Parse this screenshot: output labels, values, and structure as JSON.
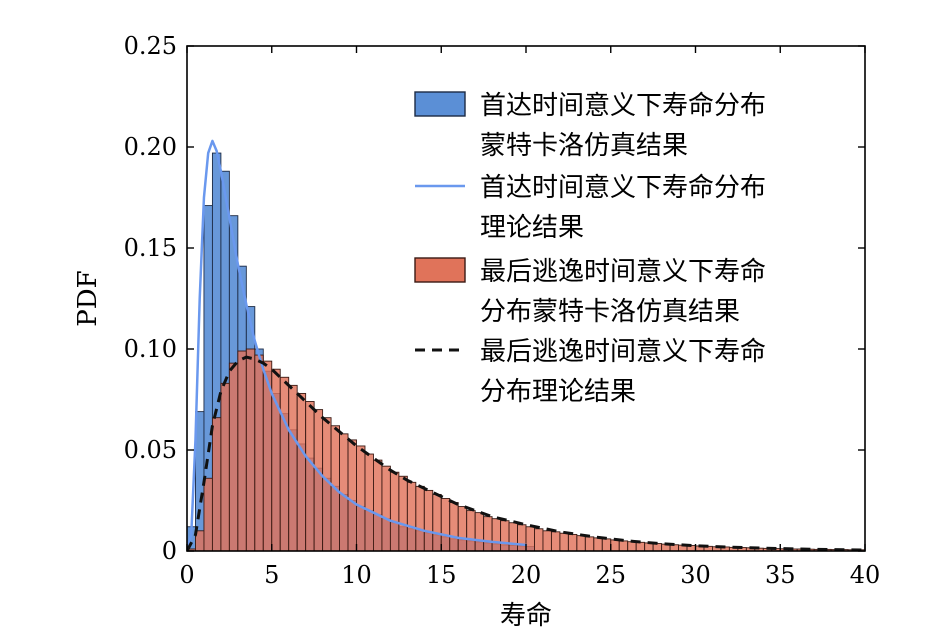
{
  "chart_data": {
    "type": "bar",
    "title": "",
    "xlabel": "寿命",
    "ylabel": "PDF",
    "xlim": [
      0,
      40
    ],
    "ylim": [
      0,
      0.25
    ],
    "grid": false,
    "legend_position": "top-right",
    "x_ticks": [
      0,
      5,
      10,
      15,
      20,
      25,
      30,
      35,
      40
    ],
    "x_tick_labels": [
      "0",
      "5",
      "10",
      "15",
      "20",
      "25",
      "30",
      "35",
      "40"
    ],
    "y_ticks": [
      0,
      0.05,
      0.1,
      0.15,
      0.2,
      0.25
    ],
    "y_tick_labels": [
      "0",
      "0.05",
      "0.10",
      "0.15",
      "0.20",
      "0.25"
    ],
    "series": [
      {
        "name": "首达时间意义下寿命分布蒙特卡洛仿真结果",
        "legend_lines": [
          "首达时间意义下寿命分布",
          "蒙特卡洛仿真结果"
        ],
        "kind": "histogram",
        "bin_width": 0.5,
        "bin_starts": [
          0,
          0.5,
          1,
          1.5,
          2,
          2.5,
          3,
          3.5,
          4,
          4.5,
          5,
          5.5,
          6,
          6.5,
          7,
          7.5,
          8,
          8.5,
          9,
          9.5,
          10,
          10.5,
          11,
          11.5,
          12,
          12.5,
          13,
          13.5,
          14,
          14.5,
          15,
          15.5,
          16,
          16.5,
          17,
          17.5,
          18,
          18.5,
          19,
          19.5,
          20
        ],
        "values": [
          0.012,
          0.069,
          0.171,
          0.197,
          0.188,
          0.166,
          0.141,
          0.121,
          0.1,
          0.089,
          0.078,
          0.068,
          0.06,
          0.053,
          0.046,
          0.041,
          0.036,
          0.032,
          0.028,
          0.025,
          0.022,
          0.02,
          0.018,
          0.016,
          0.014,
          0.012,
          0.011,
          0.01,
          0.009,
          0.008,
          0.007,
          0.006,
          0.0055,
          0.005,
          0.0045,
          0.004,
          0.0035,
          0.003,
          0.0028,
          0.0025,
          0.0022
        ],
        "color": "#5b8fd6",
        "edge_color": "#1c2a44"
      },
      {
        "name": "首达时间意义下寿命分布理论结果",
        "legend_lines": [
          "首达时间意义下寿命分布",
          "理论结果"
        ],
        "kind": "line",
        "x": [
          0,
          0.25,
          0.5,
          0.75,
          1,
          1.25,
          1.5,
          1.75,
          2,
          2.5,
          3,
          3.5,
          4,
          4.5,
          5,
          6,
          7,
          8,
          9,
          10,
          12,
          14,
          16,
          18,
          20
        ],
        "values": [
          0,
          0.008,
          0.055,
          0.125,
          0.175,
          0.197,
          0.203,
          0.198,
          0.188,
          0.165,
          0.142,
          0.122,
          0.104,
          0.09,
          0.078,
          0.06,
          0.047,
          0.037,
          0.029,
          0.023,
          0.015,
          0.01,
          0.0065,
          0.0045,
          0.003
        ],
        "color": "#6a98ee"
      },
      {
        "name": "最后逃逸时间意义下寿命分布蒙特卡洛仿真结果",
        "legend_lines": [
          "最后逃逸时间意义下寿命",
          "分布蒙特卡洛仿真结果"
        ],
        "kind": "histogram",
        "bin_width": 0.5,
        "bin_starts": [
          0,
          0.5,
          1,
          1.5,
          2,
          2.5,
          3,
          3.5,
          4,
          4.5,
          5,
          5.5,
          6,
          6.5,
          7,
          7.5,
          8,
          8.5,
          9,
          9.5,
          10,
          10.5,
          11,
          11.5,
          12,
          12.5,
          13,
          13.5,
          14,
          14.5,
          15,
          15.5,
          16,
          16.5,
          17,
          17.5,
          18,
          18.5,
          19,
          19.5,
          20,
          20.5,
          21,
          21.5,
          22,
          22.5,
          23,
          23.5,
          24,
          24.5,
          25,
          25.5,
          26,
          26.5,
          27,
          27.5,
          28,
          28.5,
          29,
          29.5,
          30,
          30.5,
          31,
          31.5,
          32,
          32.5,
          33,
          33.5,
          34,
          34.5,
          35,
          35.5,
          36,
          36.5,
          37,
          37.5,
          38,
          38.5,
          39,
          39.5
        ],
        "values": [
          0.001,
          0.01,
          0.036,
          0.066,
          0.083,
          0.093,
          0.099,
          0.1,
          0.097,
          0.094,
          0.09,
          0.086,
          0.082,
          0.078,
          0.074,
          0.07,
          0.066,
          0.062,
          0.058,
          0.055,
          0.052,
          0.048,
          0.045,
          0.042,
          0.039,
          0.037,
          0.034,
          0.032,
          0.03,
          0.028,
          0.026,
          0.024,
          0.022,
          0.02,
          0.019,
          0.017,
          0.016,
          0.015,
          0.014,
          0.013,
          0.012,
          0.011,
          0.01,
          0.0095,
          0.0088,
          0.0082,
          0.0076,
          0.007,
          0.0065,
          0.006,
          0.0055,
          0.005,
          0.0046,
          0.0043,
          0.004,
          0.0037,
          0.0034,
          0.0031,
          0.0029,
          0.0027,
          0.0025,
          0.0023,
          0.0021,
          0.002,
          0.0018,
          0.0017,
          0.0016,
          0.0014,
          0.0013,
          0.0012,
          0.0011,
          0.001,
          0.001,
          0.0009,
          0.0008,
          0.0008,
          0.0007,
          0.0007,
          0.0006,
          0.0006
        ],
        "color": "#e0735a",
        "edge_color": "#3a1a14"
      },
      {
        "name": "最后逃逸时间意义下寿命分布理论结果",
        "legend_lines": [
          "最后逃逸时间意义下寿命",
          "分布理论结果"
        ],
        "kind": "line",
        "style": "dashed",
        "x": [
          0,
          0.5,
          1,
          1.5,
          2,
          2.5,
          3,
          3.5,
          4,
          4.5,
          5,
          6,
          7,
          8,
          9,
          10,
          11,
          12,
          13,
          14,
          15,
          16,
          17,
          18,
          20,
          22,
          24,
          26,
          28,
          30,
          32,
          34,
          36,
          38,
          40
        ],
        "values": [
          0,
          0.008,
          0.034,
          0.062,
          0.079,
          0.089,
          0.094,
          0.096,
          0.095,
          0.093,
          0.09,
          0.082,
          0.074,
          0.066,
          0.059,
          0.052,
          0.046,
          0.04,
          0.035,
          0.031,
          0.027,
          0.023,
          0.02,
          0.017,
          0.013,
          0.0095,
          0.007,
          0.005,
          0.0036,
          0.0026,
          0.0019,
          0.0014,
          0.001,
          0.0007,
          0.0005
        ],
        "color": "#111111"
      }
    ]
  }
}
